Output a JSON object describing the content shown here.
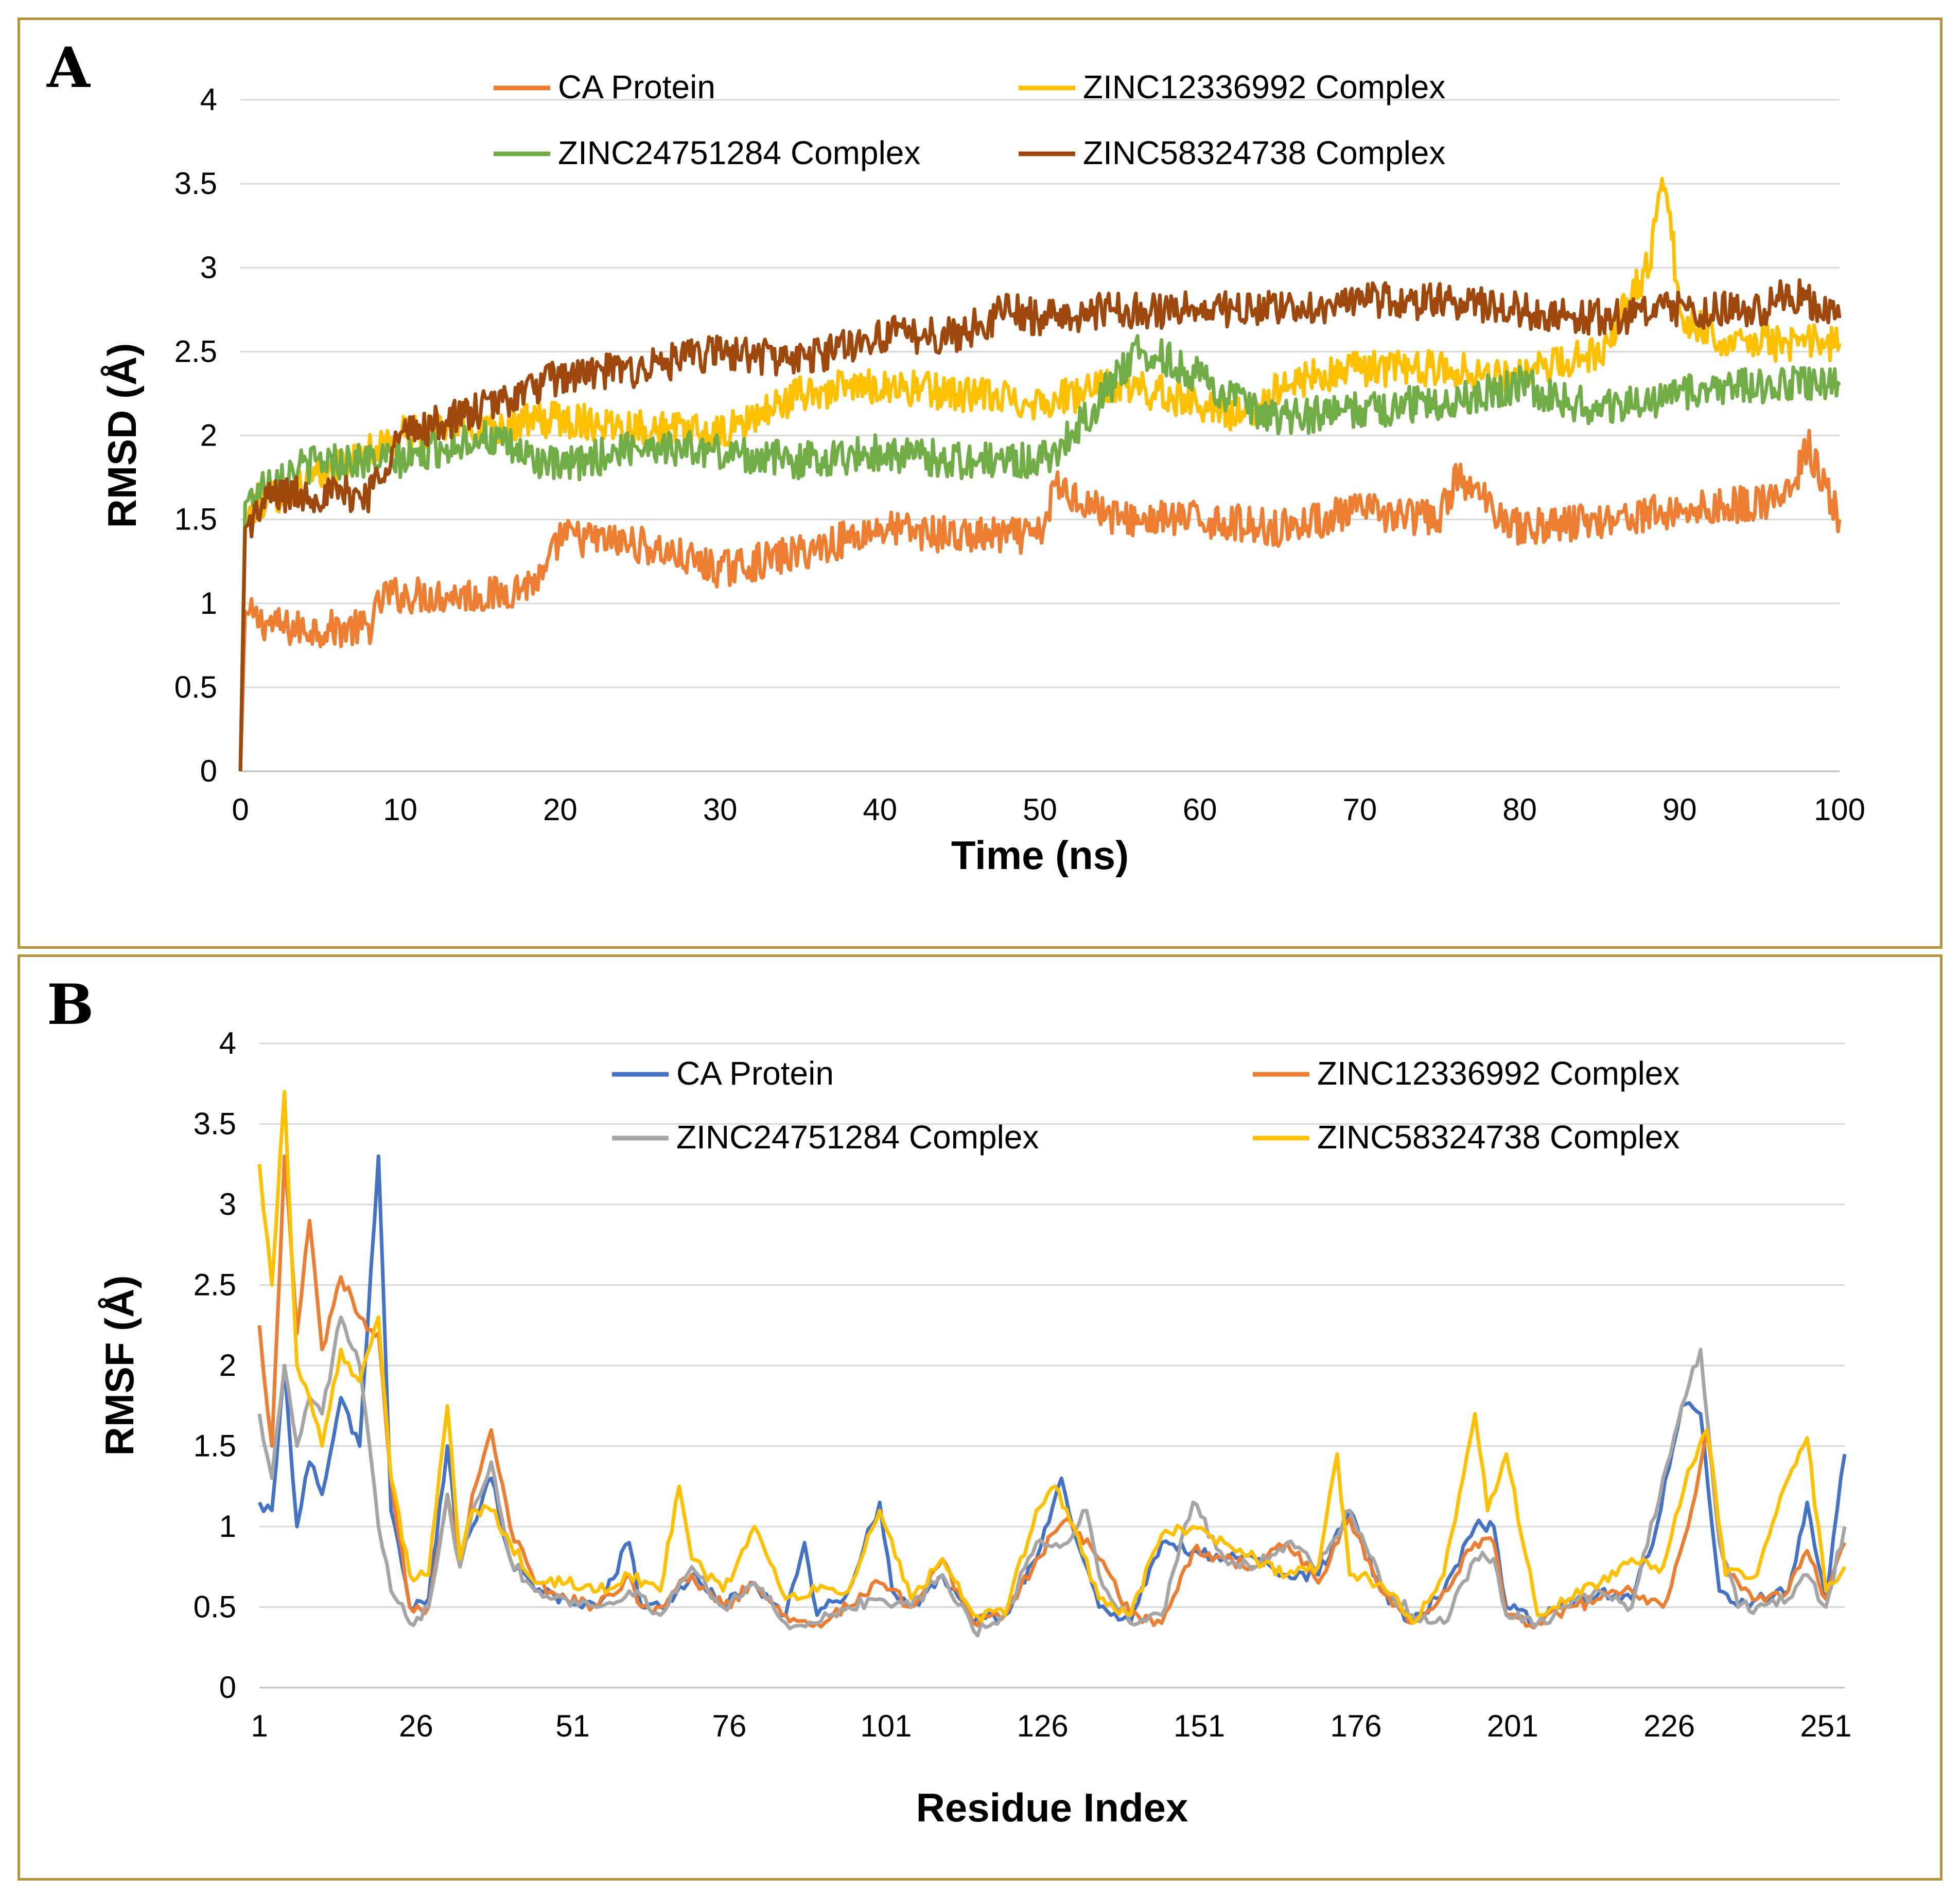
{
  "panels": {
    "a": {
      "letter": "A"
    },
    "b": {
      "letter": "B"
    }
  },
  "chart_data": [
    {
      "id": "rmsd",
      "type": "line",
      "xlabel": "Time (ns)",
      "ylabel": "RMSD (Å)",
      "xlim": [
        0,
        100
      ],
      "ylim": [
        0,
        4
      ],
      "x_ticks": [
        "0",
        "10",
        "20",
        "30",
        "40",
        "50",
        "60",
        "70",
        "80",
        "90",
        "100"
      ],
      "y_ticks": [
        "0",
        "0.5",
        "1",
        "1.5",
        "2",
        "2.5",
        "3",
        "3.5",
        "4"
      ],
      "grid": "horizontal",
      "legend_position": "top",
      "series": [
        {
          "name": "CA Protein",
          "color": "#ED7D31",
          "x": [
            0,
            0.3,
            1,
            3,
            5,
            8,
            9,
            12,
            16,
            19,
            20,
            25,
            30,
            35,
            40,
            45,
            50,
            51,
            55,
            60,
            65,
            70,
            75,
            76,
            80,
            85,
            90,
            95,
            97,
            98,
            99,
            100
          ],
          "y": [
            0,
            0.95,
            0.9,
            0.85,
            0.85,
            0.85,
            1.05,
            1.05,
            1.05,
            1.15,
            1.4,
            1.35,
            1.2,
            1.3,
            1.45,
            1.4,
            1.4,
            1.7,
            1.5,
            1.5,
            1.45,
            1.55,
            1.5,
            1.75,
            1.45,
            1.5,
            1.55,
            1.6,
            1.65,
            1.95,
            1.7,
            1.5
          ]
        },
        {
          "name": "ZINC12336992 Complex",
          "color": "#FFC000",
          "x": [
            0,
            0.3,
            1,
            5,
            10,
            15,
            20,
            25,
            30,
            35,
            40,
            45,
            50,
            55,
            60,
            63,
            65,
            70,
            75,
            80,
            85,
            88,
            89,
            89.5,
            90,
            92,
            95,
            98,
            100
          ],
          "y": [
            0,
            1.5,
            1.6,
            1.75,
            2.0,
            2.05,
            2.1,
            2.05,
            2.0,
            2.25,
            2.3,
            2.25,
            2.2,
            2.3,
            2.2,
            2.1,
            2.3,
            2.4,
            2.4,
            2.35,
            2.5,
            3.0,
            3.5,
            3.2,
            2.7,
            2.6,
            2.55,
            2.55,
            2.55
          ]
        },
        {
          "name": "ZINC24751284 Complex",
          "color": "#70AD47",
          "x": [
            0,
            0.3,
            2,
            5,
            10,
            15,
            20,
            25,
            30,
            35,
            40,
            45,
            50,
            52,
            56,
            58,
            60,
            64,
            65,
            70,
            75,
            80,
            85,
            90,
            95,
            100
          ],
          "y": [
            0,
            1.6,
            1.75,
            1.85,
            1.85,
            2.0,
            1.8,
            1.95,
            1.9,
            1.85,
            1.9,
            1.85,
            1.85,
            2.0,
            2.5,
            2.45,
            2.35,
            2.1,
            2.1,
            2.15,
            2.2,
            2.3,
            2.15,
            2.25,
            2.3,
            2.3
          ]
        },
        {
          "name": "ZINC58324738 Complex",
          "color": "#9E480E",
          "x": [
            0,
            0.3,
            2,
            5,
            8,
            10,
            15,
            20,
            25,
            30,
            35,
            40,
            45,
            48,
            50,
            55,
            60,
            65,
            70,
            75,
            80,
            85,
            90,
            95,
            97,
            100
          ],
          "y": [
            0,
            1.45,
            1.65,
            1.65,
            1.65,
            2.0,
            2.15,
            2.35,
            2.4,
            2.5,
            2.45,
            2.6,
            2.6,
            2.75,
            2.7,
            2.75,
            2.75,
            2.75,
            2.8,
            2.8,
            2.75,
            2.7,
            2.75,
            2.75,
            2.85,
            2.7
          ]
        }
      ]
    },
    {
      "id": "rmsf",
      "type": "line",
      "xlabel": "Residue Index",
      "ylabel": "RMSF (Å)",
      "xlim": [
        1,
        254
      ],
      "ylim": [
        0,
        4
      ],
      "x_ticks": [
        "1",
        "26",
        "51",
        "76",
        "101",
        "126",
        "151",
        "176",
        "201",
        "226",
        "251"
      ],
      "y_ticks": [
        "0",
        "0.5",
        "1",
        "1.5",
        "2",
        "2.5",
        "3",
        "3.5",
        "4"
      ],
      "grid": "horizontal",
      "legend_position": "top",
      "series": [
        {
          "name": "CA Protein",
          "color": "#4472C4",
          "x": [
            1,
            3,
            5,
            7,
            9,
            11,
            14,
            17,
            20,
            22,
            25,
            28,
            31,
            33,
            35,
            38,
            41,
            45,
            50,
            55,
            60,
            62,
            65,
            70,
            75,
            80,
            85,
            88,
            90,
            95,
            100,
            102,
            105,
            110,
            115,
            120,
            125,
            129,
            132,
            135,
            140,
            145,
            150,
            155,
            160,
            165,
            170,
            175,
            180,
            185,
            190,
            195,
            198,
            200,
            205,
            210,
            215,
            220,
            224,
            228,
            231,
            234,
            237,
            240,
            245,
            248,
            251,
            254
          ],
          "y": [
            1.15,
            1.1,
            2.0,
            1.0,
            1.4,
            1.2,
            1.8,
            1.5,
            3.3,
            1.1,
            0.5,
            0.55,
            1.5,
            0.8,
            1.0,
            1.3,
            0.8,
            0.6,
            0.55,
            0.5,
            0.9,
            0.5,
            0.5,
            0.7,
            0.5,
            0.65,
            0.45,
            0.9,
            0.45,
            0.6,
            1.15,
            0.6,
            0.5,
            0.7,
            0.4,
            0.45,
            0.8,
            1.3,
            0.85,
            0.5,
            0.4,
            0.9,
            0.85,
            0.8,
            0.8,
            0.7,
            0.7,
            1.1,
            0.6,
            0.4,
            0.6,
            1.0,
            1.0,
            0.5,
            0.4,
            0.55,
            0.6,
            0.55,
            1.0,
            1.75,
            1.7,
            0.6,
            0.5,
            0.55,
            0.6,
            1.15,
            0.55,
            1.45
          ]
        },
        {
          "name": "ZINC12336992 Complex",
          "color": "#ED7D31",
          "x": [
            1,
            3,
            5,
            7,
            9,
            11,
            14,
            17,
            20,
            22,
            25,
            28,
            31,
            33,
            35,
            38,
            41,
            45,
            50,
            55,
            60,
            62,
            65,
            70,
            75,
            80,
            85,
            90,
            95,
            100,
            105,
            110,
            115,
            120,
            125,
            130,
            135,
            140,
            145,
            150,
            155,
            160,
            165,
            170,
            175,
            180,
            185,
            190,
            195,
            198,
            200,
            205,
            210,
            215,
            220,
            225,
            229,
            232,
            235,
            240,
            245,
            248,
            251,
            254
          ],
          "y": [
            2.25,
            1.5,
            3.3,
            2.2,
            2.9,
            2.1,
            2.55,
            2.3,
            2.2,
            1.3,
            0.5,
            0.5,
            1.2,
            0.8,
            1.2,
            1.6,
            1.0,
            0.65,
            0.55,
            0.5,
            0.7,
            0.5,
            0.5,
            0.7,
            0.5,
            0.65,
            0.45,
            0.4,
            0.5,
            0.65,
            0.5,
            0.8,
            0.4,
            0.45,
            0.8,
            1.05,
            0.8,
            0.45,
            0.4,
            0.85,
            0.8,
            0.75,
            0.9,
            0.65,
            1.05,
            0.6,
            0.4,
            0.6,
            0.9,
            0.9,
            0.45,
            0.4,
            0.5,
            0.55,
            0.6,
            0.5,
            1.0,
            1.6,
            0.7,
            0.55,
            0.6,
            0.85,
            0.55,
            0.9
          ]
        },
        {
          "name": "ZINC24751284 Complex",
          "color": "#A5A5A5",
          "x": [
            1,
            3,
            5,
            7,
            9,
            11,
            14,
            17,
            20,
            22,
            25,
            28,
            31,
            33,
            35,
            38,
            41,
            45,
            50,
            55,
            60,
            65,
            70,
            75,
            80,
            85,
            90,
            95,
            100,
            105,
            110,
            115,
            120,
            125,
            130,
            133,
            135,
            140,
            145,
            150,
            155,
            160,
            165,
            170,
            175,
            180,
            185,
            190,
            195,
            198,
            200,
            205,
            210,
            215,
            220,
            225,
            228,
            231,
            234,
            237,
            240,
            245,
            248,
            251,
            254
          ],
          "y": [
            1.7,
            1.3,
            2.0,
            1.5,
            1.8,
            1.7,
            2.3,
            2.0,
            1.0,
            0.6,
            0.4,
            0.5,
            1.2,
            0.75,
            1.1,
            1.4,
            0.8,
            0.6,
            0.55,
            0.5,
            0.6,
            0.45,
            0.75,
            0.5,
            0.65,
            0.4,
            0.4,
            0.5,
            0.55,
            0.5,
            0.7,
            0.35,
            0.45,
            0.9,
            0.9,
            1.1,
            0.7,
            0.4,
            0.45,
            1.15,
            0.8,
            0.75,
            0.9,
            0.75,
            1.1,
            0.65,
            0.45,
            0.4,
            0.8,
            0.8,
            0.45,
            0.4,
            0.5,
            0.6,
            0.5,
            1.3,
            1.75,
            2.1,
            0.9,
            0.5,
            0.5,
            0.55,
            0.7,
            0.5,
            1.0
          ]
        },
        {
          "name": "ZINC58324738 Complex",
          "color": "#FFC000",
          "x": [
            1,
            3,
            5,
            7,
            9,
            11,
            14,
            17,
            20,
            22,
            25,
            28,
            31,
            33,
            35,
            38,
            41,
            45,
            50,
            55,
            60,
            65,
            68,
            70,
            75,
            80,
            85,
            90,
            95,
            100,
            105,
            110,
            115,
            120,
            125,
            128,
            131,
            135,
            140,
            145,
            150,
            155,
            160,
            165,
            170,
            173,
            175,
            180,
            185,
            190,
            195,
            197,
            200,
            205,
            210,
            215,
            220,
            225,
            229,
            232,
            235,
            240,
            245,
            248,
            251,
            254
          ],
          "y": [
            3.25,
            2.5,
            3.7,
            2.0,
            1.8,
            1.5,
            2.1,
            1.9,
            2.3,
            1.3,
            0.7,
            0.7,
            1.75,
            0.8,
            1.1,
            1.1,
            0.9,
            0.65,
            0.65,
            0.6,
            0.7,
            0.6,
            1.25,
            0.8,
            0.6,
            1.0,
            0.55,
            0.6,
            0.6,
            1.1,
            0.55,
            0.8,
            0.45,
            0.45,
            1.1,
            1.25,
            1.0,
            0.55,
            0.45,
            0.95,
            1.0,
            0.9,
            0.8,
            0.7,
            0.75,
            1.45,
            0.7,
            0.65,
            0.4,
            0.7,
            1.7,
            1.1,
            1.45,
            0.45,
            0.55,
            0.65,
            0.8,
            0.75,
            1.35,
            1.6,
            0.7,
            0.7,
            1.3,
            1.55,
            0.6,
            0.75
          ]
        }
      ]
    }
  ]
}
